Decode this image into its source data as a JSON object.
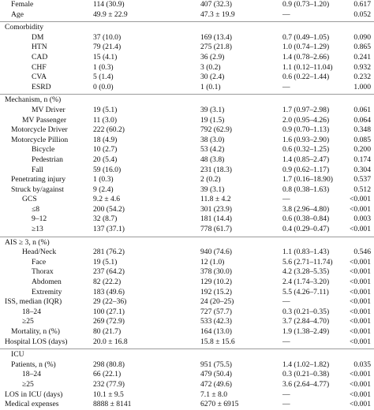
{
  "rows": [
    {
      "type": "row",
      "label": "Female",
      "indent": 1,
      "c1": "114 (30.9)",
      "c2": "407 (32.3)",
      "c3": "0.9 (0.73–1.20)",
      "p": "0.617"
    },
    {
      "type": "row",
      "label": "Age",
      "indent": 1,
      "c1": "49.9 ± 22.9",
      "c2": "47.3 ± 19.9",
      "c3": "—",
      "p": "0.052"
    },
    {
      "type": "rule"
    },
    {
      "type": "row",
      "label": "Comorbidity",
      "indent": 0,
      "c1": "",
      "c2": "",
      "c3": "",
      "p": ""
    },
    {
      "type": "row",
      "label": "DM",
      "indent": 3,
      "c1": "37 (10.0)",
      "c2": "169 (13.4)",
      "c3": "0.7 (0.49–1.05)",
      "p": "0.090"
    },
    {
      "type": "row",
      "label": "HTN",
      "indent": 3,
      "c1": "79 (21.4)",
      "c2": "275 (21.8)",
      "c3": "1.0 (0.74–1.29)",
      "p": "0.865"
    },
    {
      "type": "row",
      "label": "CAD",
      "indent": 3,
      "c1": "15 (4.1)",
      "c2": "36 (2.9)",
      "c3": "1.4 (0.78–2.66)",
      "p": "0.241"
    },
    {
      "type": "row",
      "label": "CHF",
      "indent": 3,
      "c1": "1 (0.3)",
      "c2": "3 (0.2)",
      "c3": "1.1 (0.12–11.04)",
      "p": "0.932"
    },
    {
      "type": "row",
      "label": "CVA",
      "indent": 3,
      "c1": "5 (1.4)",
      "c2": "30 (2.4)",
      "c3": "0.6 (0.22–1.44)",
      "p": "0.232"
    },
    {
      "type": "row",
      "label": "ESRD",
      "indent": 3,
      "c1": "0 (0.0)",
      "c2": "1 (0.1)",
      "c3": "—",
      "p": "1.000"
    },
    {
      "type": "rule"
    },
    {
      "type": "row",
      "label": "Mechanism, n (%)",
      "indent": 0,
      "c1": "",
      "c2": "",
      "c3": "",
      "p": ""
    },
    {
      "type": "row",
      "label": "MV Driver",
      "indent": 3,
      "c1": "19 (5.1)",
      "c2": "39 (3.1)",
      "c3": "1.7 (0.97–2.98)",
      "p": "0.061"
    },
    {
      "type": "row",
      "label": "MV Passenger",
      "indent": 2,
      "c1": "11 (3.0)",
      "c2": "19 (1.5)",
      "c3": "2.0 (0.95–4.26)",
      "p": "0.064"
    },
    {
      "type": "row",
      "label": "Motorcycle Driver",
      "indent": 1,
      "c1": "222 (60.2)",
      "c2": "792 (62.9)",
      "c3": "0.9 (0.70–1.13)",
      "p": "0.348"
    },
    {
      "type": "row",
      "label": "Motorcycle Pillion",
      "indent": 1,
      "c1": "18 (4.9)",
      "c2": "38 (3.0)",
      "c3": "1.6 (0.93–2.90)",
      "p": "0.085"
    },
    {
      "type": "row",
      "label": "Bicycle",
      "indent": 3,
      "c1": "10 (2.7)",
      "c2": "53 (4.2)",
      "c3": "0.6 (0.32–1.25)",
      "p": "0.200"
    },
    {
      "type": "row",
      "label": "Pedestrian",
      "indent": 3,
      "c1": "20 (5.4)",
      "c2": "48 (3.8)",
      "c3": "1.4 (0.85–2.47)",
      "p": "0.174"
    },
    {
      "type": "row",
      "label": "Fall",
      "indent": 3,
      "c1": "59 (16.0)",
      "c2": "231 (18.3)",
      "c3": "0.9 (0.62–1.17)",
      "p": "0.304"
    },
    {
      "type": "row",
      "label": "Penetrating injury",
      "indent": 1,
      "c1": "1 (0.3)",
      "c2": "2 (0.2)",
      "c3": "1.7 (0.16–18.90)",
      "p": "0.537"
    },
    {
      "type": "row",
      "label": "Struck by/against",
      "indent": 1,
      "c1": "9 (2.4)",
      "c2": "39 (3.1)",
      "c3": "0.8 (0.38–1.63)",
      "p": "0.512"
    },
    {
      "type": "row",
      "label": "GCS",
      "indent": 2,
      "c1": "9.2 ± 4.6",
      "c2": "11.8 ± 4.2",
      "c3": "—",
      "p": "<0.001"
    },
    {
      "type": "row",
      "label": "≤8",
      "indent": 3,
      "c1": "200 (54.2)",
      "c2": "301 (23.9)",
      "c3": "3.8 (2.96–4.80)",
      "p": "<0.001"
    },
    {
      "type": "row",
      "label": "9–12",
      "indent": 3,
      "c1": "32 (8.7)",
      "c2": "181 (14.4)",
      "c3": "0.6 (0.38–0.84)",
      "p": "0.003"
    },
    {
      "type": "row",
      "label": "≥13",
      "indent": 3,
      "c1": "137 (37.1)",
      "c2": "778 (61.7)",
      "c3": "0.4 (0.29–0.47)",
      "p": "<0.001"
    },
    {
      "type": "rule"
    },
    {
      "type": "row",
      "label": "AIS ≥ 3, n (%)",
      "indent": 0,
      "c1": "",
      "c2": "",
      "c3": "",
      "p": ""
    },
    {
      "type": "row",
      "label": "Head/Neck",
      "indent": 2,
      "c1": "281 (76.2)",
      "c2": "940 (74.6)",
      "c3": "1.1 (0.83–1.43)",
      "p": "0.546"
    },
    {
      "type": "row",
      "label": "Face",
      "indent": 3,
      "c1": "19 (5.1)",
      "c2": "12 (1.0)",
      "c3": "5.6 (2.71–11.74)",
      "p": "<0.001"
    },
    {
      "type": "row",
      "label": "Thorax",
      "indent": 3,
      "c1": "237 (64.2)",
      "c2": "378 (30.0)",
      "c3": "4.2 (3.28–5.35)",
      "p": "<0.001"
    },
    {
      "type": "row",
      "label": "Abdomen",
      "indent": 3,
      "c1": "82 (22.2)",
      "c2": "129 (10.2)",
      "c3": "2.4 (1.74–3.20)",
      "p": "<0.001"
    },
    {
      "type": "row",
      "label": "Extremity",
      "indent": 3,
      "c1": "183 (49.6)",
      "c2": "192 (15.2)",
      "c3": "5.5 (4.26–7.11)",
      "p": "<0.001"
    },
    {
      "type": "row",
      "label": "ISS, median (IQR)",
      "indent": 0,
      "c1": "29 (22–36)",
      "c2": "24 (20–25)",
      "c3": "—",
      "p": "<0.001"
    },
    {
      "type": "row",
      "label": "18–24",
      "indent": 2,
      "c1": "100 (27.1)",
      "c2": "727 (57.7)",
      "c3": "0.3 (0.21–0.35)",
      "p": "<0.001"
    },
    {
      "type": "row",
      "label": "≥25",
      "indent": 2,
      "c1": "269 (72.9)",
      "c2": "533 (42.3)",
      "c3": "3.7 (2.84–4.70)",
      "p": "<0.001"
    },
    {
      "type": "row",
      "label": "Mortality, n (%)",
      "indent": 1,
      "c1": "80 (21.7)",
      "c2": "164 (13.0)",
      "c3": "1.9 (1.38–2.49)",
      "p": "<0.001"
    },
    {
      "type": "row",
      "label": "Hospital LOS (days)",
      "indent": 0,
      "c1": "20.0 ± 16.8",
      "c2": "15.8 ± 15.6",
      "c3": "—",
      "p": "<0.001"
    },
    {
      "type": "rule"
    },
    {
      "type": "row",
      "label": "ICU",
      "indent": 1,
      "c1": "",
      "c2": "",
      "c3": "",
      "p": ""
    },
    {
      "type": "row",
      "label": "Patients, n (%)",
      "indent": 1,
      "c1": "298 (80.8)",
      "c2": "951 (75.5)",
      "c3": "1.4 (1.02–1.82)",
      "p": "0.035"
    },
    {
      "type": "row",
      "label": "18–24",
      "indent": 2,
      "c1": "66 (22.1)",
      "c2": "479 (50.4)",
      "c3": "0.3 (0.21–0.38)",
      "p": "<0.001"
    },
    {
      "type": "row",
      "label": "≥25",
      "indent": 2,
      "c1": "232 (77.9)",
      "c2": "472 (49.6)",
      "c3": "3.6 (2.64–4.77)",
      "p": "<0.001"
    },
    {
      "type": "row",
      "label": "LOS in ICU (days)",
      "indent": 0,
      "c1": "10.1 ± 9.5",
      "c2": "7.1 ± 8.0",
      "c3": "—",
      "p": "<0.001"
    },
    {
      "type": "row",
      "label": "Medical expenses",
      "indent": 0,
      "c1": "8888 ± 8141",
      "c2": "6270 ± 6915",
      "c3": "—",
      "p": "<0.001"
    }
  ]
}
